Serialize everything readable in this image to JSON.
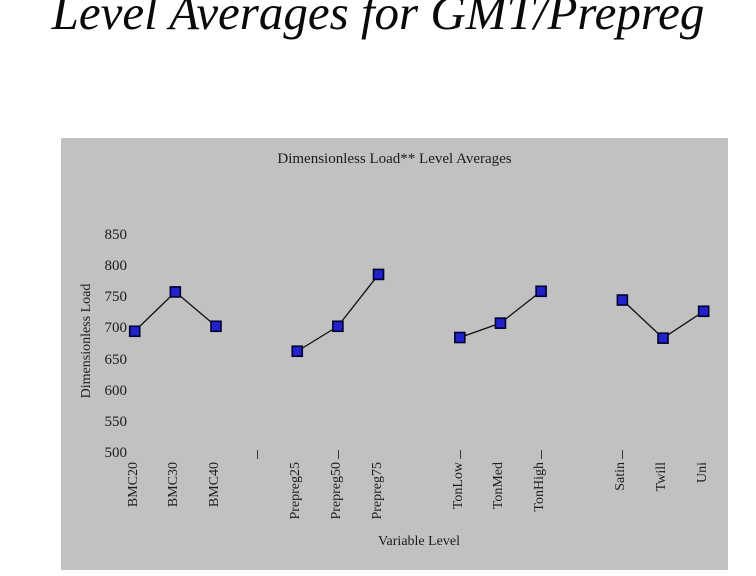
{
  "slide": {
    "title": "Level Averages for GMT/Prepreg"
  },
  "chart_data": {
    "type": "line",
    "title": "Dimensionless Load** Level Averages",
    "xlabel": "Variable Level",
    "ylabel": "Dimensionless Load",
    "ylim": [
      500,
      850
    ],
    "yticks": [
      850,
      800,
      750,
      700,
      650,
      600,
      550,
      500
    ],
    "grid": false,
    "legend": "none",
    "marker": "square",
    "groups": [
      {
        "categories": [
          "BMC20",
          "BMC30",
          "BMC40"
        ],
        "values": [
          697,
          760,
          705
        ]
      },
      {
        "categories": [
          "Prepreg25",
          "Prepreg50",
          "Prepreg75"
        ],
        "values": [
          665,
          705,
          788
        ]
      },
      {
        "categories": [
          "TonLow",
          "TonMed",
          "TonHigh"
        ],
        "values": [
          687,
          710,
          761
        ]
      },
      {
        "categories": [
          "Satin",
          "Twill",
          "Uni"
        ],
        "values": [
          747,
          686,
          729
        ]
      }
    ],
    "colors": {
      "plot_bg": "#c1c1c1",
      "marker_fill": "#2222cc",
      "marker_edge": "#000030",
      "line": "#101010",
      "text": "#1c1c1c"
    }
  }
}
